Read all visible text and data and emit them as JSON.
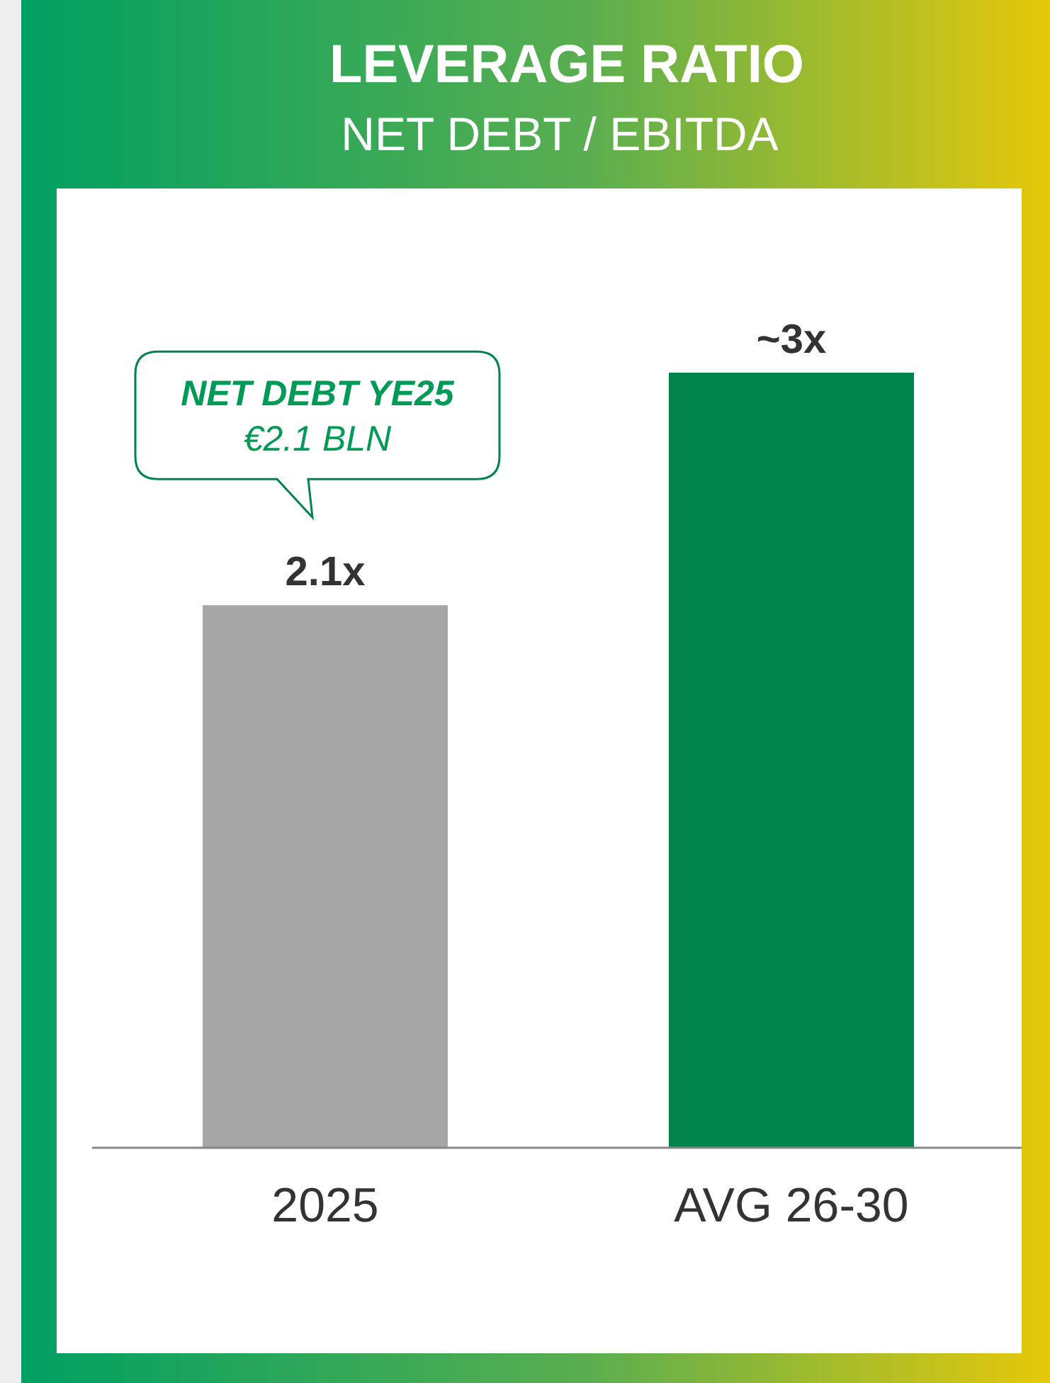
{
  "chart_data": {
    "type": "bar",
    "title": "LEVERAGE RATIO",
    "subtitle": "NET DEBT / EBITDA",
    "categories": [
      "2025",
      "AVG 26-30"
    ],
    "values": [
      2.1,
      3
    ],
    "colors": [
      "#a6a6a6",
      "#00844c"
    ],
    "value_labels": [
      "2.1x",
      "~3x"
    ],
    "annotations": [
      "NET DEBT YE25",
      "€2.1 BLN"
    ]
  }
}
